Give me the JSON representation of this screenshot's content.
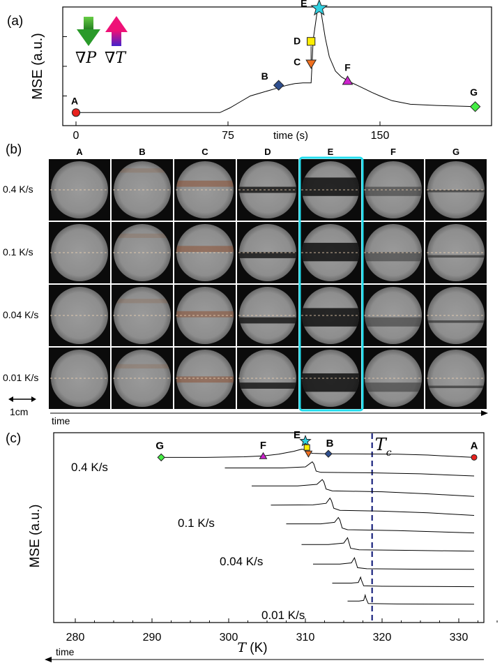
{
  "panel_a": {
    "tag": "(a)",
    "ylabel": "MSE (a.u.)",
    "xlabel": "time (s)",
    "grad_p": "∇P",
    "grad_t": "∇T"
  },
  "panel_b": {
    "tag": "(b)",
    "scale_label": "1cm",
    "time_label": "time",
    "columns": [
      "A",
      "B",
      "C",
      "D",
      "E",
      "F",
      "G"
    ],
    "rows": [
      "0.4 K/s",
      "0.1 K/s",
      "0.04 K/s",
      "0.01 K/s"
    ],
    "highlight_column": "E"
  },
  "panel_c": {
    "tag": "(c)",
    "ylabel": "MSE (a.u.)",
    "xlabel_var": "T",
    "xlabel_unit": " (K)",
    "time_label": "time",
    "tc_label_main": "T",
    "tc_label_sub": "c",
    "tc_value": 318.7,
    "rate_labels": [
      "0.4 K/s",
      "0.1 K/s",
      "0.04 K/s",
      "0.01 K/s"
    ]
  },
  "colors": {
    "A": "#e8221e",
    "B": "#2e4e8e",
    "C": "#f07020",
    "D": "#ffee00",
    "E": "#30d0e0",
    "F": "#cc22cc",
    "G": "#44ee44",
    "cyan_box": "#22ddee",
    "tc_line": "#1a237e",
    "grad_p_arrow": "#2a9a2a",
    "grad_t_arrow_top": "#ee1177",
    "grad_t_arrow_bottom": "#4422cc"
  },
  "chart_data": [
    {
      "type": "line",
      "panel": "a",
      "xlabel": "time (s)",
      "ylabel": "MSE (a.u.)",
      "xlim": [
        -5,
        200
      ],
      "ylim": [
        0,
        1
      ],
      "x_ticks": [
        0,
        75,
        150
      ],
      "series": [
        {
          "x": [
            0,
            25,
            50,
            71,
            76,
            81,
            86,
            92,
            98,
            104,
            108,
            112,
            114,
            116,
            116.5,
            117,
            119,
            120,
            121,
            123,
            125,
            128,
            131,
            135,
            140,
            146,
            150,
            156,
            165,
            178,
            197
          ],
          "y": [
            0.11,
            0.11,
            0.11,
            0.11,
            0.15,
            0.2,
            0.25,
            0.28,
            0.31,
            0.34,
            0.355,
            0.36,
            0.36,
            0.36,
            0.52,
            0.72,
            0.96,
            0.99,
            0.95,
            0.74,
            0.58,
            0.46,
            0.41,
            0.37,
            0.33,
            0.28,
            0.25,
            0.21,
            0.18,
            0.17,
            0.16
          ]
        }
      ],
      "points": [
        {
          "label": "A",
          "x": 0,
          "y": 0.11
        },
        {
          "label": "B",
          "x": 100,
          "y": 0.34
        },
        {
          "label": "C",
          "x": 116,
          "y": 0.52
        },
        {
          "label": "D",
          "x": 116,
          "y": 0.71
        },
        {
          "label": "E",
          "x": 120,
          "y": 0.99
        },
        {
          "label": "F",
          "x": 134,
          "y": 0.38
        },
        {
          "label": "G",
          "x": 197,
          "y": 0.16
        }
      ]
    },
    {
      "type": "line",
      "panel": "c",
      "xlabel": "T (K)",
      "ylabel": "MSE (a.u.)",
      "xlim": [
        280,
        335
      ],
      "ylim": [
        0,
        9
      ],
      "x_ticks": [
        280,
        290,
        300,
        310,
        320,
        330
      ],
      "series": [
        {
          "name": "0.4 K/s",
          "x": [
            291.2,
            297,
            302,
            304.5,
            306.5,
            308.5,
            309.5,
            310,
            310.1,
            311,
            313,
            318,
            322,
            326,
            329,
            332
          ],
          "y": [
            7.83,
            7.83,
            7.86,
            7.9,
            7.98,
            8.12,
            8.22,
            8.2,
            8.08,
            8.02,
            8.0,
            7.99,
            7.98,
            7.94,
            7.88,
            7.83
          ]
        },
        {
          "name": "",
          "x": [
            299.5,
            307,
            310,
            310.9,
            311.1,
            311.4,
            312,
            318,
            325,
            332
          ],
          "y": [
            7.33,
            7.33,
            7.38,
            7.62,
            7.52,
            7.18,
            7.12,
            7.1,
            7.05,
            6.95
          ]
        },
        {
          "name": "",
          "x": [
            303,
            309,
            311.5,
            312.2,
            312.4,
            312.7,
            313.5,
            320,
            326,
            332
          ],
          "y": [
            6.48,
            6.48,
            6.55,
            6.78,
            6.68,
            6.33,
            6.24,
            6.2,
            6.1,
            5.98
          ]
        },
        {
          "name": "0.1 K/s",
          "x": [
            305.5,
            311,
            312.7,
            313.2,
            313.4,
            313.7,
            314.5,
            320,
            326,
            332
          ],
          "y": [
            5.57,
            5.58,
            5.65,
            5.9,
            5.78,
            5.42,
            5.32,
            5.28,
            5.2,
            5.08
          ]
        },
        {
          "name": "",
          "x": [
            307.5,
            312,
            313.8,
            314.3,
            314.5,
            314.8,
            315.5,
            322,
            332
          ],
          "y": [
            4.68,
            4.68,
            4.75,
            4.98,
            4.86,
            4.48,
            4.4,
            4.36,
            4.25
          ]
        },
        {
          "name": "0.04 K/s",
          "x": [
            309.5,
            313,
            315,
            315.5,
            315.6,
            315.9,
            317,
            324,
            332
          ],
          "y": [
            3.7,
            3.7,
            3.77,
            4.02,
            3.9,
            3.52,
            3.45,
            3.42,
            3.38
          ]
        },
        {
          "name": "",
          "x": [
            311,
            314.5,
            316,
            316.4,
            316.5,
            316.8,
            318,
            324,
            332
          ],
          "y": [
            2.77,
            2.77,
            2.83,
            3.07,
            2.95,
            2.6,
            2.55,
            2.53,
            2.52
          ]
        },
        {
          "name": "",
          "x": [
            313.5,
            316,
            316.9,
            317.2,
            317.3,
            317.6,
            320,
            332
          ],
          "y": [
            1.87,
            1.87,
            1.9,
            2.15,
            2.02,
            1.74,
            1.72,
            1.7
          ]
        },
        {
          "name": "0.01 K/s",
          "x": [
            315.5,
            317,
            317.6,
            317.8,
            317.9,
            318.2,
            322,
            332
          ],
          "y": [
            1.02,
            1.02,
            1.05,
            1.3,
            1.15,
            0.9,
            0.88,
            0.87
          ]
        }
      ],
      "points": [
        {
          "label": "G",
          "x": 291.2,
          "y": 7.83
        },
        {
          "label": "F",
          "x": 304.5,
          "y": 7.9
        },
        {
          "label": "E",
          "x": 310.0,
          "y": 8.6
        },
        {
          "label": "D",
          "x": 310.2,
          "y": 8.3
        },
        {
          "label": "C",
          "x": 310.4,
          "y": 8.0
        },
        {
          "label": "B",
          "x": 313,
          "y": 8.0
        },
        {
          "label": "A",
          "x": 332,
          "y": 7.83
        }
      ]
    }
  ]
}
